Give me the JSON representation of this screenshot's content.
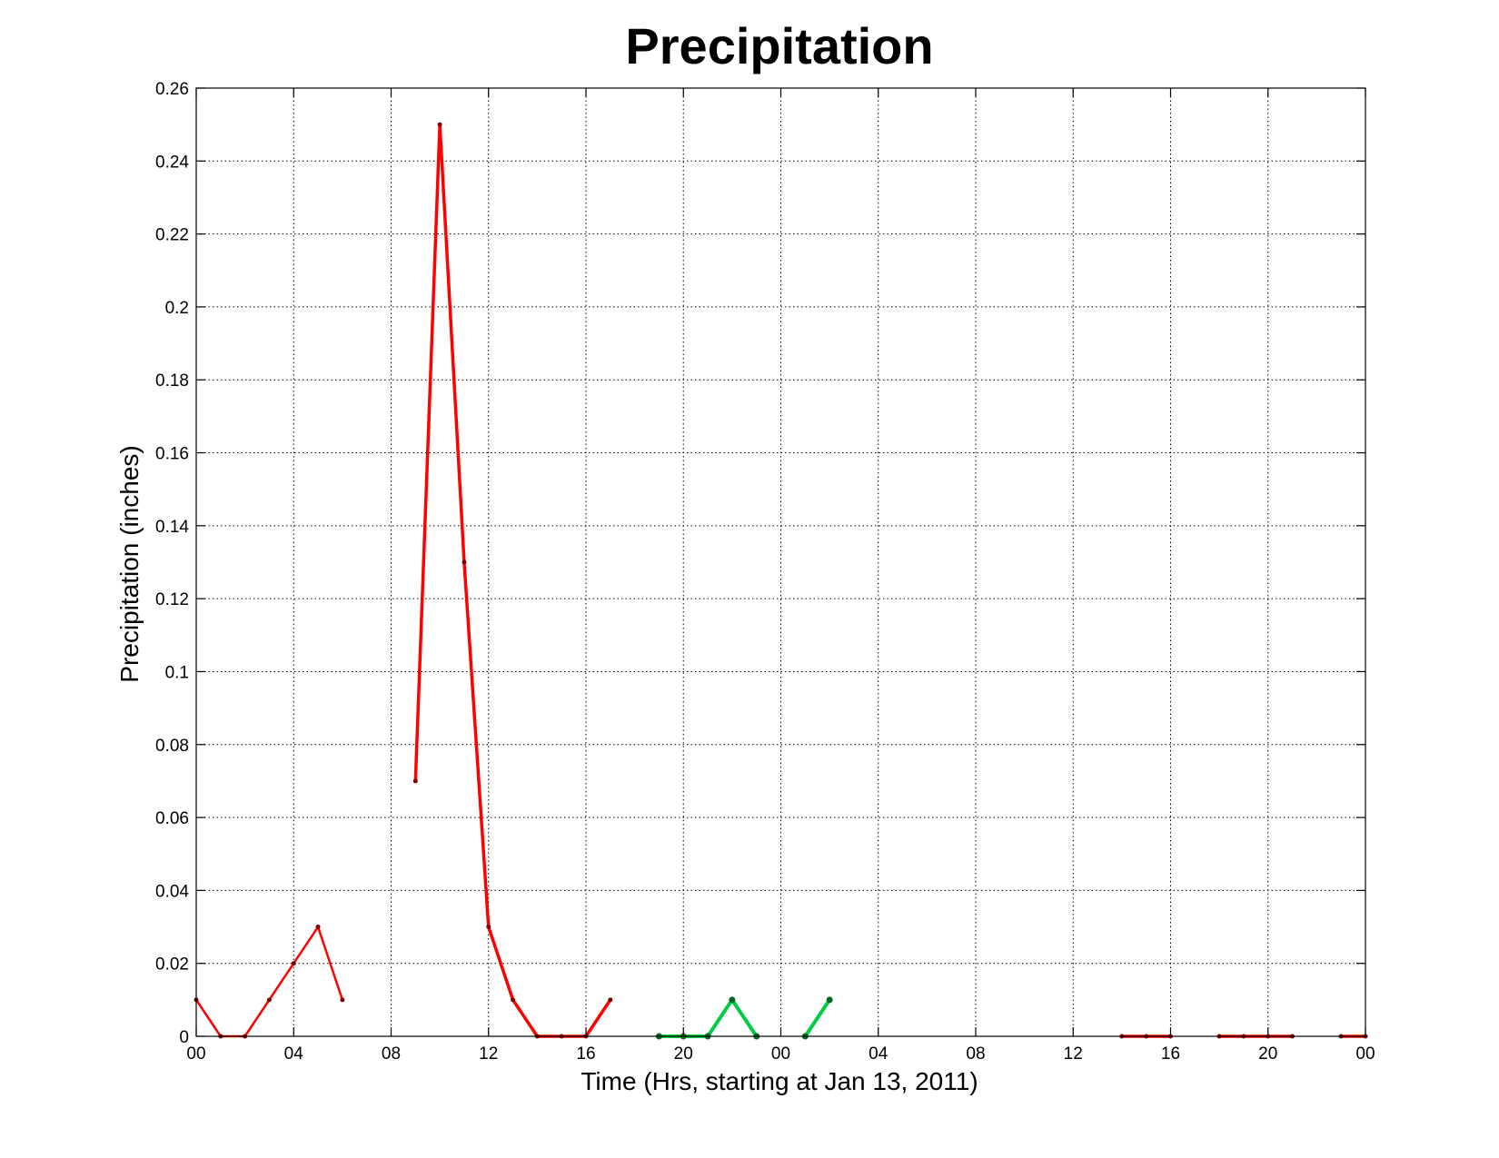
{
  "chart_data": {
    "type": "line",
    "title": "Precipitation",
    "xlabel": "Time (Hrs, starting at Jan 13, 2011)",
    "ylabel": "Precipitation (inches)",
    "xunit": "hours",
    "xlim": [
      0,
      48
    ],
    "ylim": [
      0,
      0.26
    ],
    "grid": true,
    "x_tick_values": [
      0,
      4,
      8,
      12,
      16,
      20,
      24,
      28,
      32,
      36,
      40,
      44,
      48
    ],
    "x_tick_labels": [
      "00",
      "04",
      "08",
      "12",
      "16",
      "20",
      "00",
      "04",
      "08",
      "12",
      "16",
      "20",
      "00"
    ],
    "y_ticks": [
      0,
      0.02,
      0.04,
      0.06,
      0.08,
      0.1,
      0.12,
      0.14,
      0.16,
      0.18,
      0.2,
      0.22,
      0.24,
      0.26
    ],
    "y_tick_labels": [
      "0",
      "0.02",
      "0.04",
      "0.06",
      "0.08",
      "0.1",
      "0.12",
      "0.14",
      "0.16",
      "0.18",
      "0.2",
      "0.22",
      "0.24",
      "0.26"
    ],
    "series": [
      {
        "color": "#ff0000",
        "marker_color": "#800000",
        "width": 2.5,
        "marker_size": 2.5,
        "points": [
          [
            0,
            0.01
          ],
          [
            1,
            0
          ],
          [
            2,
            0
          ],
          [
            3,
            0.01
          ],
          [
            4,
            0.02
          ],
          [
            5,
            0.03
          ],
          [
            6,
            0.01
          ]
        ]
      },
      {
        "color": "#ff0000",
        "marker_color": "#800000",
        "width": 3.5,
        "marker_size": 2.5,
        "points": [
          [
            9,
            0.07
          ],
          [
            10,
            0.25
          ],
          [
            11,
            0.13
          ],
          [
            12,
            0.03
          ],
          [
            13,
            0.01
          ],
          [
            14,
            0
          ],
          [
            15,
            0
          ],
          [
            16,
            0
          ],
          [
            17,
            0.01
          ]
        ]
      },
      {
        "color": "#00cc44",
        "marker_color": "#006622",
        "width": 4,
        "marker_size": 3.5,
        "points": [
          [
            19,
            0
          ],
          [
            20,
            0
          ],
          [
            21,
            0
          ],
          [
            22,
            0.01
          ],
          [
            23,
            0
          ]
        ]
      },
      {
        "color": "#00cc44",
        "marker_color": "#006622",
        "width": 4,
        "marker_size": 3.5,
        "points": [
          [
            25,
            0
          ],
          [
            26,
            0.01
          ]
        ]
      },
      {
        "color": "#ff0000",
        "marker_color": "#800000",
        "width": 3.5,
        "marker_size": 2.5,
        "points": [
          [
            38,
            0
          ],
          [
            39,
            0
          ],
          [
            40,
            0
          ]
        ]
      },
      {
        "color": "#ff0000",
        "marker_color": "#800000",
        "width": 3.5,
        "marker_size": 2.5,
        "points": [
          [
            42,
            0
          ],
          [
            43,
            0
          ],
          [
            44,
            0
          ],
          [
            45,
            0
          ]
        ]
      },
      {
        "color": "#ff0000",
        "marker_color": "#800000",
        "width": 3.5,
        "marker_size": 2.5,
        "points": [
          [
            47,
            0
          ],
          [
            48,
            0
          ]
        ]
      }
    ]
  }
}
